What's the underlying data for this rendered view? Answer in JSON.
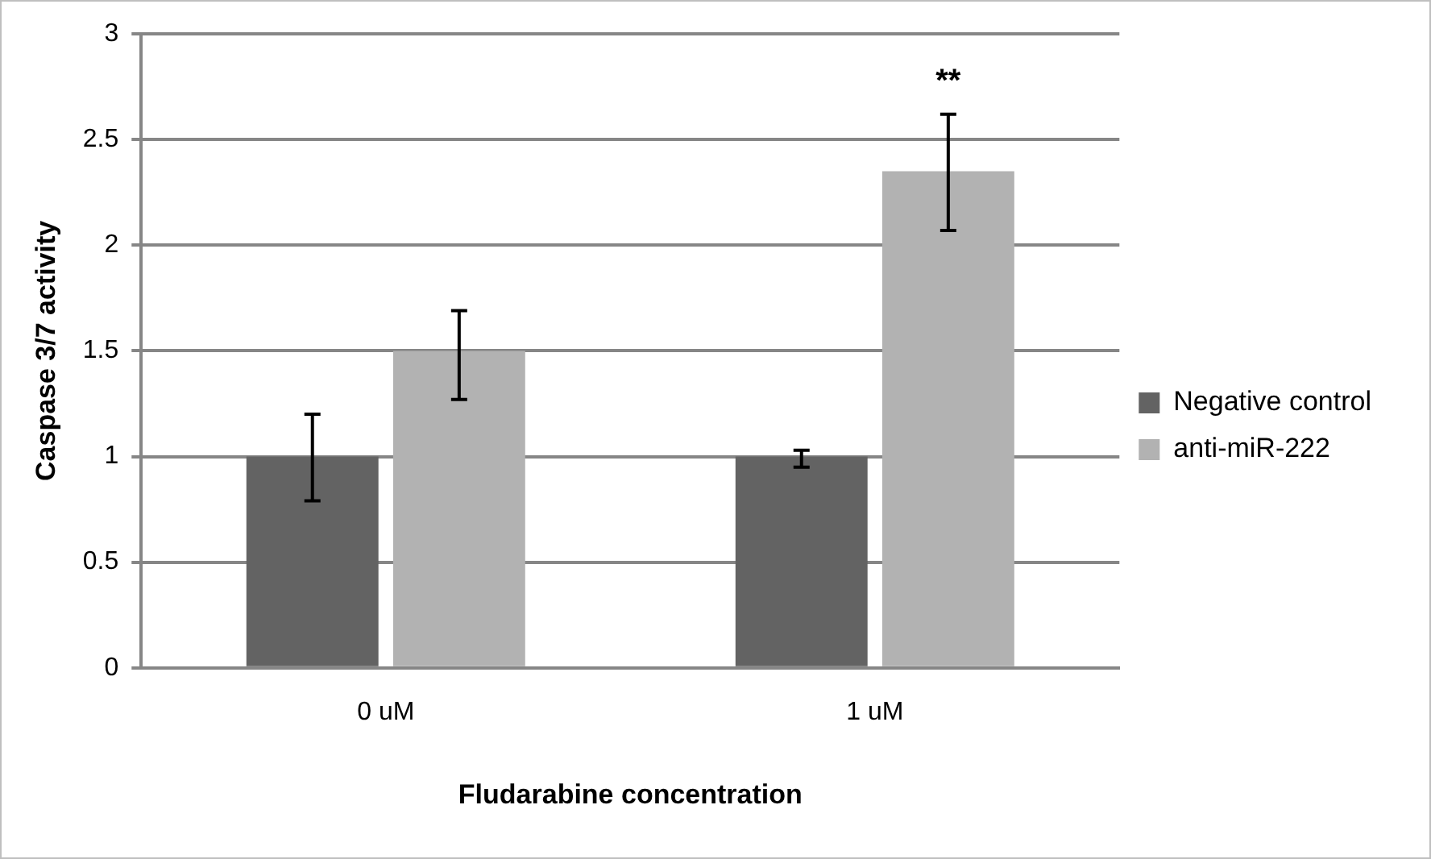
{
  "chart_data": {
    "type": "bar",
    "xlabel": "Fludarabine concentration",
    "ylabel": "Caspase 3/7 activity",
    "categories": [
      "0 uM",
      "1 uM"
    ],
    "series": [
      {
        "name": "Negative control",
        "color": "#636363",
        "values": [
          1,
          1
        ],
        "errors": [
          [
            0.79,
            1.2
          ],
          [
            0.95,
            1.03
          ]
        ]
      },
      {
        "name": "anti-miR-222",
        "color": "#b2b2b2",
        "values": [
          1.5,
          2.35
        ],
        "errors": [
          [
            1.27,
            1.69
          ],
          [
            2.07,
            2.62
          ]
        ]
      }
    ],
    "ylim": [
      0,
      3
    ],
    "yticks": [
      0,
      0.5,
      1,
      1.5,
      2,
      2.5,
      3
    ],
    "grid": "y",
    "legend": "right",
    "annotations": [
      "**"
    ]
  }
}
